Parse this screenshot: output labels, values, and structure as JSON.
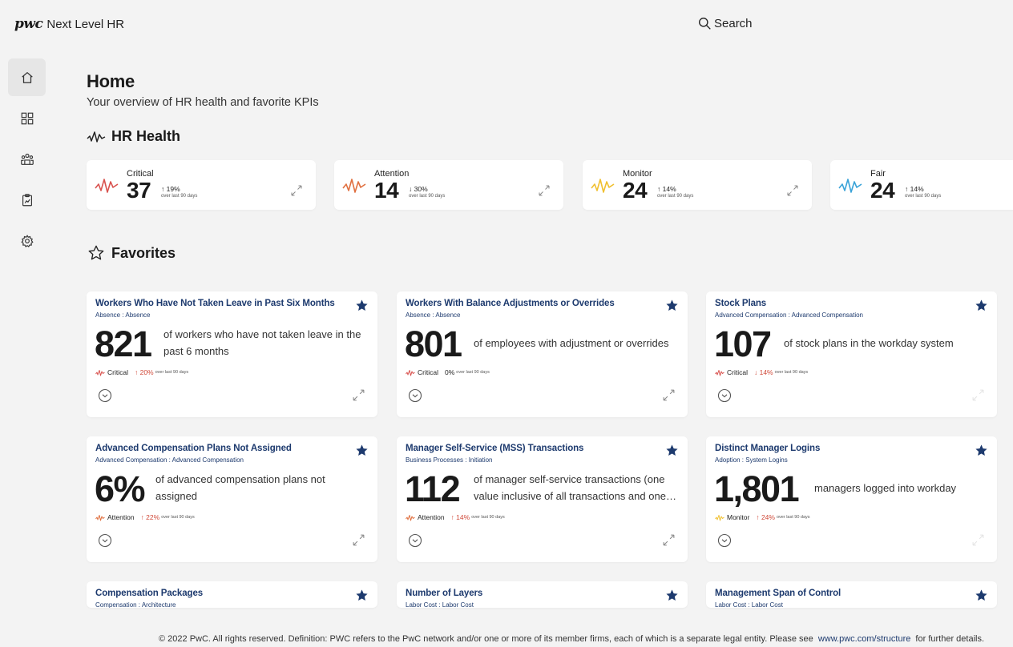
{
  "header": {
    "brand_logo": "pwc",
    "brand_name": "Next Level HR",
    "search_label": "Search"
  },
  "sidebar": {
    "items": [
      {
        "icon": "home-icon",
        "active": true
      },
      {
        "icon": "dashboard-grid-icon",
        "active": false
      },
      {
        "icon": "team-icon",
        "active": false
      },
      {
        "icon": "clipboard-chart-icon",
        "active": false
      },
      {
        "icon": "settings-gear-icon",
        "active": false
      }
    ]
  },
  "page": {
    "title": "Home",
    "subtitle": "Your overview of HR health and favorite KPIs"
  },
  "health": {
    "title": "HR Health",
    "cards": [
      {
        "label": "Critical",
        "value": "37",
        "change": "↑ 19%",
        "note": "over last 90 days",
        "color": "#d9534f"
      },
      {
        "label": "Attention",
        "value": "14",
        "change": "↓ 30%",
        "note": "over last 90 days",
        "color": "#e07040"
      },
      {
        "label": "Monitor",
        "value": "24",
        "change": "↑ 14%",
        "note": "over last 90 days",
        "color": "#f0c030"
      },
      {
        "label": "Fair",
        "value": "24",
        "change": "↑ 14%",
        "note": "over last 90 days",
        "color": "#3aa3d8"
      }
    ]
  },
  "favorites": {
    "title": "Favorites",
    "cards": [
      {
        "title": "Workers Who Have Not Taken Leave in Past Six Months",
        "subtitle": "Absence : Absence",
        "value": "821",
        "description": "of workers who have not taken leave in the past 6 months",
        "status": "Critical",
        "status_color": "#d9534f",
        "change": "↑ 20%",
        "note": "over last 90 days"
      },
      {
        "title": "Workers With Balance Adjustments or Overrides",
        "subtitle": "Absence : Absence",
        "value": "801",
        "description": "of employees with adjustment or overrides",
        "status": "Critical",
        "status_color": "#d9534f",
        "change": "0%",
        "note": "over last 90 days"
      },
      {
        "title": "Stock Plans",
        "subtitle": "Advanced Compensation : Advanced Compensation",
        "value": "107",
        "description": "of stock plans in the workday system",
        "status": "Critical",
        "status_color": "#d9534f",
        "change": "↓ 14%",
        "note": "over last 90 days"
      },
      {
        "title": "Advanced Compensation Plans Not Assigned",
        "subtitle": "Advanced Compensation : Advanced Compensation",
        "value": "6%",
        "description": "of advanced compensation plans not assigned",
        "status": "Attention",
        "status_color": "#e07040",
        "change": "↑ 22%",
        "note": "over last 90 days"
      },
      {
        "title": "Manager Self-Service (MSS) Transactions",
        "subtitle": "Business Processes : Initiation",
        "value": "112",
        "description": "of manager self-service transactions (one value inclusive of all transactions and one value for each transaction type)",
        "status": "Attention",
        "status_color": "#e07040",
        "change": "↑ 14%",
        "note": "over last 90 days"
      },
      {
        "title": "Distinct Manager Logins",
        "subtitle": "Adoption : System Logins",
        "value": "1,801",
        "description": "managers logged into workday",
        "status": "Monitor",
        "status_color": "#f0c030",
        "change": "↑ 24%",
        "note": "over last 90 days"
      },
      {
        "title": "Compensation Packages",
        "subtitle": "Compensation : Architecture"
      },
      {
        "title": "Number of Layers",
        "subtitle": "Labor Cost : Labor Cost"
      },
      {
        "title": "Management Span of Control",
        "subtitle": "Labor Cost : Labor Cost"
      }
    ]
  },
  "footer": {
    "text_before": "© 2022 PwC. All rights reserved. Definition: PWC refers to the PwC network and/or one or more of its member firms, each of which is a separate legal entity. Please see",
    "link": "www.pwc.com/structure",
    "text_after": "for further details."
  },
  "colors": {
    "accent_navy": "#1d3a6e",
    "background": "#f3f3f3",
    "negative_change": "#d04a3a"
  }
}
